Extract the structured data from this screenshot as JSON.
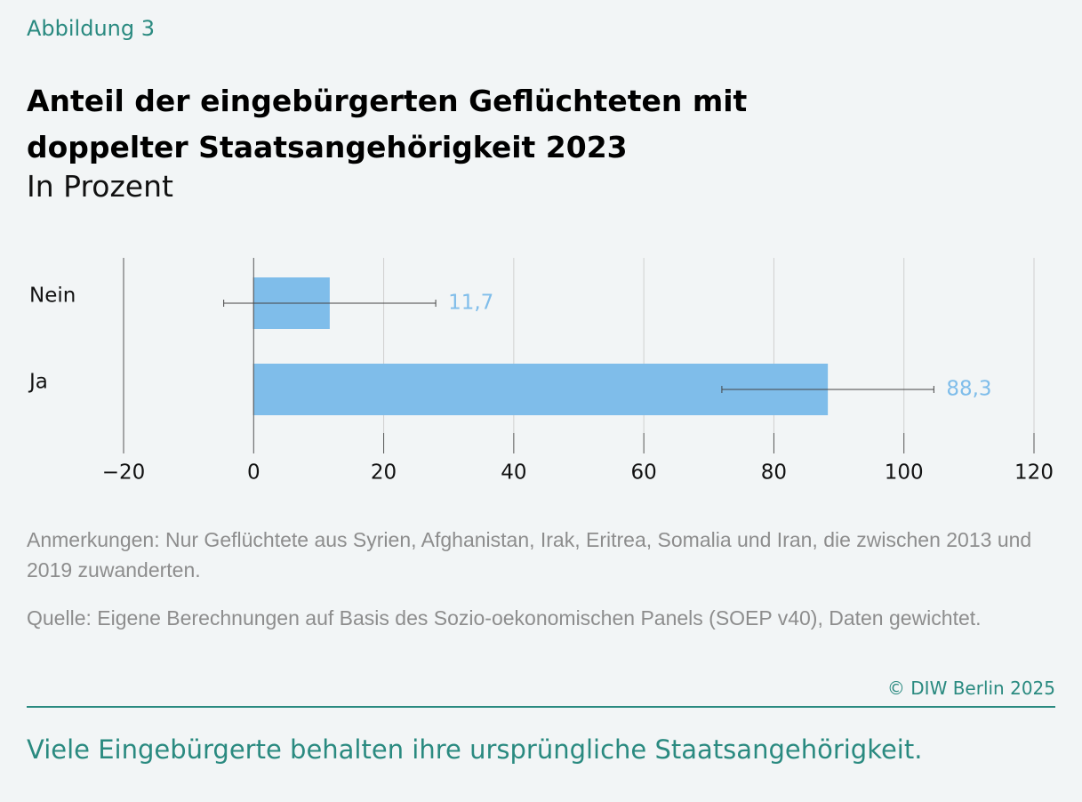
{
  "chart_data": {
    "type": "bar",
    "orientation": "horizontal",
    "figure_label": "Abbildung 3",
    "title": "Anteil der eingebürgerten Geflüchteten mit doppelter Staatsangehörigkeit 2023",
    "subtitle": "In Prozent",
    "categories": [
      "Nein",
      "Ja"
    ],
    "values": [
      11.7,
      88.3
    ],
    "errors": [
      16.3,
      16.3
    ],
    "value_labels": [
      "11,7",
      "88,3"
    ],
    "color": "#7fbdea",
    "label_color": "#7fbdea",
    "xlim": [
      -20,
      120
    ],
    "xticks": [
      {
        "value": -20,
        "label": "−20"
      },
      0,
      20,
      40,
      60,
      80,
      100,
      120
    ],
    "grid": true,
    "note": "Anmerkungen: Nur Geflüchtete aus Syrien, Afghanistan, Irak, Eritrea, Somalia und Iran, die zwischen 2013 und 2019 zuwanderten.",
    "source": "Quelle: Eigene Berechnungen auf Basis des Sozio-oekonomischen Panels (SOEP v40), Daten gewichtet.",
    "copyright": "© DIW Berlin 2025",
    "tagline": "Viele Eingebürgerte behalten ihre ursprüngliche Staatsangehörigkeit."
  }
}
